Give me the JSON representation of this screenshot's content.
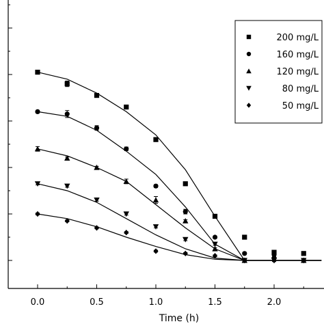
{
  "chart_data": {
    "type": "scatter",
    "xlabel": "Time (h)",
    "ylabel": "",
    "xlim": [
      -0.25,
      2.4
    ],
    "ylim": [
      -0.1,
      1.05
    ],
    "x_ticks": [
      0.0,
      0.5,
      1.0,
      1.5,
      2.0
    ],
    "x_tick_labels": [
      "0.0",
      "0.5",
      "1.0",
      "1.5",
      "2.0"
    ],
    "y_ticks": [
      0.0,
      0.2,
      0.4,
      0.6,
      0.8,
      1.0
    ],
    "legend_position": "top-right",
    "grid": false,
    "series": [
      {
        "name": "200 mg/L",
        "marker": "square",
        "x": [
          0.0,
          0.25,
          0.5,
          0.75,
          1.0,
          1.25,
          1.5,
          1.75,
          2.0,
          2.25
        ],
        "y": [
          0.81,
          0.76,
          0.71,
          0.66,
          0.52,
          0.33,
          0.19,
          0.1,
          0.035,
          0.03
        ],
        "err": [
          0.008,
          0.012,
          0.006,
          0.008,
          0.006,
          0.006,
          0.007,
          0.006,
          0.006,
          0.006
        ],
        "fit_x": [
          0.0,
          0.25,
          0.5,
          0.75,
          1.0,
          1.25,
          1.5,
          1.75,
          2.0,
          2.25,
          2.4
        ],
        "fit_y": [
          0.81,
          0.78,
          0.72,
          0.64,
          0.54,
          0.39,
          0.19,
          0.0,
          0.0,
          0.0,
          0.0
        ]
      },
      {
        "name": "160 mg/L",
        "marker": "circle",
        "x": [
          0.0,
          0.25,
          0.5,
          0.75,
          1.0,
          1.25,
          1.5,
          1.75,
          2.0,
          2.25
        ],
        "y": [
          0.64,
          0.63,
          0.57,
          0.48,
          0.32,
          0.21,
          0.1,
          0.03,
          0.025,
          0.0
        ],
        "err": [
          0.006,
          0.015,
          0.01,
          0.008,
          0.006,
          0.01,
          0.005,
          0.005,
          0.005,
          0.005
        ],
        "fit_x": [
          0.0,
          0.25,
          0.5,
          0.75,
          1.0,
          1.25,
          1.5,
          1.75,
          2.0,
          2.25,
          2.4
        ],
        "fit_y": [
          0.64,
          0.62,
          0.56,
          0.47,
          0.37,
          0.23,
          0.07,
          0.0,
          0.0,
          0.0,
          0.0
        ]
      },
      {
        "name": "120 mg/L",
        "marker": "triangle-up",
        "x": [
          0.0,
          0.25,
          0.5,
          0.75,
          1.0,
          1.25,
          1.5,
          1.75,
          2.0,
          2.25
        ],
        "y": [
          0.48,
          0.44,
          0.4,
          0.34,
          0.26,
          0.17,
          0.05,
          0.0,
          0.02,
          0.0
        ],
        "err": [
          0.01,
          0.005,
          0.005,
          0.01,
          0.015,
          0.005,
          0.005,
          0.005,
          0.005,
          0.005
        ],
        "fit_x": [
          0.0,
          0.25,
          0.5,
          0.75,
          1.0,
          1.25,
          1.5,
          1.75,
          2.0,
          2.25,
          2.4
        ],
        "fit_y": [
          0.48,
          0.45,
          0.4,
          0.34,
          0.24,
          0.14,
          0.05,
          0.0,
          0.0,
          0.0,
          0.0
        ]
      },
      {
        "name": "80 mg/L",
        "marker": "triangle-down",
        "x": [
          0.0,
          0.25,
          0.5,
          0.75,
          1.0,
          1.25,
          1.5,
          1.75,
          2.0,
          2.25
        ],
        "y": [
          0.33,
          0.32,
          0.26,
          0.2,
          0.145,
          0.09,
          0.07,
          0.0,
          0.0,
          0.0
        ],
        "err": [
          0.005,
          0.005,
          0.005,
          0.005,
          0.005,
          0.005,
          0.005,
          0.005,
          0.005,
          0.005
        ],
        "fit_x": [
          0.0,
          0.25,
          0.5,
          0.75,
          1.0,
          1.25,
          1.5,
          1.75,
          2.0,
          2.25,
          2.4
        ],
        "fit_y": [
          0.33,
          0.3,
          0.25,
          0.18,
          0.11,
          0.05,
          0.01,
          0.0,
          0.0,
          0.0,
          0.0
        ]
      },
      {
        "name": "50 mg/L",
        "marker": "diamond",
        "x": [
          0.0,
          0.25,
          0.5,
          0.75,
          1.0,
          1.25,
          1.5,
          1.75,
          2.0,
          2.25
        ],
        "y": [
          0.2,
          0.17,
          0.14,
          0.12,
          0.04,
          0.03,
          0.02,
          0.0,
          0.0,
          0.0
        ],
        "err": [
          0.004,
          0.004,
          0.004,
          0.004,
          0.004,
          0.004,
          0.004,
          0.004,
          0.004,
          0.004
        ],
        "fit_x": [
          0.0,
          0.25,
          0.5,
          0.75,
          1.0,
          1.25,
          1.5,
          1.75,
          2.0,
          2.25,
          2.4
        ],
        "fit_y": [
          0.2,
          0.18,
          0.145,
          0.1,
          0.06,
          0.025,
          0.005,
          0.0,
          0.0,
          0.0,
          0.0
        ]
      }
    ]
  }
}
